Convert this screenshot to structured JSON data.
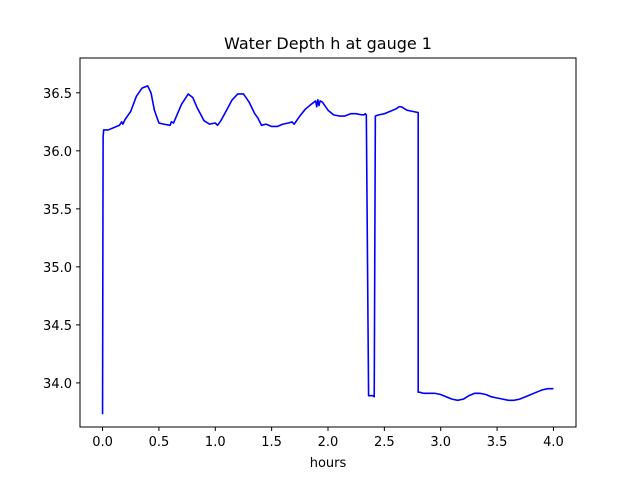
{
  "chart_data": {
    "type": "line",
    "title": "Water Depth h at gauge 1",
    "xlabel": "hours",
    "ylabel": "",
    "xlim": [
      -0.2,
      4.2
    ],
    "ylim": [
      33.62,
      36.8
    ],
    "xticks": [
      0.0,
      0.5,
      1.0,
      1.5,
      2.0,
      2.5,
      3.0,
      3.5,
      4.0
    ],
    "xtick_labels": [
      "0.0",
      "0.5",
      "1.0",
      "1.5",
      "2.0",
      "2.5",
      "3.0",
      "3.5",
      "4.0"
    ],
    "yticks": [
      34.0,
      34.5,
      35.0,
      35.5,
      36.0,
      36.5
    ],
    "ytick_labels": [
      "34.0",
      "34.5",
      "35.0",
      "35.5",
      "36.0",
      "36.5"
    ],
    "grid": false,
    "series": [
      {
        "color": "#0000ff",
        "x": [
          0.0,
          0.005,
          0.01,
          0.05,
          0.1,
          0.15,
          0.17,
          0.18,
          0.2,
          0.25,
          0.3,
          0.35,
          0.4,
          0.43,
          0.46,
          0.5,
          0.54,
          0.6,
          0.61,
          0.63,
          0.7,
          0.76,
          0.8,
          0.84,
          0.9,
          0.95,
          1.0,
          1.02,
          1.05,
          1.1,
          1.15,
          1.2,
          1.25,
          1.3,
          1.35,
          1.38,
          1.41,
          1.45,
          1.5,
          1.55,
          1.6,
          1.65,
          1.68,
          1.7,
          1.75,
          1.8,
          1.85,
          1.89,
          1.9,
          1.91,
          1.92,
          1.93,
          1.95,
          2.0,
          2.05,
          2.1,
          2.15,
          2.2,
          2.25,
          2.3,
          2.32,
          2.33,
          2.34,
          2.36,
          2.4,
          2.41,
          2.42,
          2.45,
          2.5,
          2.55,
          2.6,
          2.63,
          2.65,
          2.7,
          2.75,
          2.8,
          2.8,
          2.81,
          2.85,
          2.9,
          2.95,
          3.0,
          3.05,
          3.1,
          3.15,
          3.2,
          3.25,
          3.3,
          3.35,
          3.4,
          3.45,
          3.5,
          3.55,
          3.6,
          3.65,
          3.7,
          3.75,
          3.8,
          3.85,
          3.9,
          3.95,
          4.0
        ],
        "y": [
          33.73,
          36.12,
          36.18,
          36.18,
          36.2,
          36.22,
          36.25,
          36.23,
          36.27,
          36.34,
          36.47,
          36.54,
          36.56,
          36.5,
          36.35,
          36.24,
          36.23,
          36.22,
          36.25,
          36.24,
          36.4,
          36.49,
          36.46,
          36.37,
          36.26,
          36.23,
          36.24,
          36.22,
          36.26,
          36.35,
          36.44,
          36.49,
          36.49,
          36.42,
          36.32,
          36.28,
          36.22,
          36.23,
          36.21,
          36.21,
          36.23,
          36.24,
          36.25,
          36.23,
          36.3,
          36.36,
          36.4,
          36.43,
          36.38,
          36.44,
          36.39,
          36.43,
          36.42,
          36.35,
          36.31,
          36.3,
          36.3,
          36.32,
          36.32,
          36.31,
          36.31,
          36.32,
          36.31,
          33.89,
          33.89,
          33.88,
          36.3,
          36.31,
          36.32,
          36.34,
          36.36,
          36.38,
          36.38,
          36.35,
          36.34,
          36.33,
          33.92,
          33.92,
          33.91,
          33.91,
          33.91,
          33.9,
          33.88,
          33.86,
          33.85,
          33.86,
          33.89,
          33.91,
          33.91,
          33.9,
          33.88,
          33.87,
          33.86,
          33.85,
          33.85,
          33.86,
          33.88,
          33.9,
          33.92,
          33.94,
          33.95,
          33.95
        ]
      }
    ]
  }
}
